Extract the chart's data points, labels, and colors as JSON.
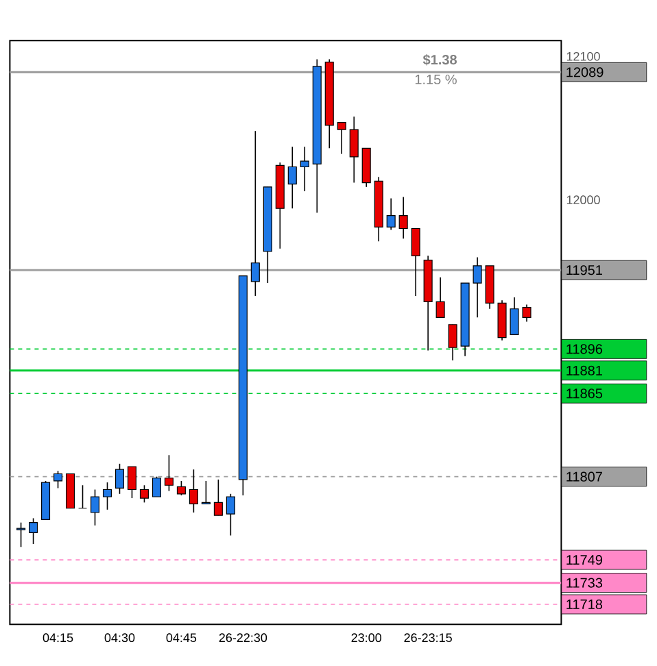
{
  "chart_data": {
    "type": "candlestick",
    "categories": [
      null,
      null,
      null,
      "04:15",
      null,
      null,
      null,
      null,
      "04:30",
      null,
      null,
      null,
      null,
      "04:45",
      null,
      null,
      null,
      null,
      "26-22:30",
      null,
      null,
      null,
      null,
      null,
      null,
      null,
      null,
      null,
      "23:00",
      null,
      null,
      null,
      null,
      "26-23:15",
      null,
      null,
      null,
      null,
      null,
      null,
      null,
      null
    ],
    "ohlc": [
      [
        11770,
        11775,
        11758,
        11771
      ],
      [
        11768,
        11778,
        11760,
        11775
      ],
      [
        11777,
        11804,
        11777,
        11803
      ],
      [
        11804,
        11811,
        11799,
        11809
      ],
      [
        11809,
        11809,
        11785,
        11785
      ],
      [
        11785,
        11801,
        11785,
        11785
      ],
      [
        11782,
        11798,
        11773,
        11793
      ],
      [
        11793,
        11803,
        11784,
        11798
      ],
      [
        11799,
        11816,
        11795,
        11812
      ],
      [
        11814,
        11814,
        11792,
        11798
      ],
      [
        11798,
        11801,
        11789,
        11792
      ],
      [
        11793,
        11807,
        11793,
        11806
      ],
      [
        11806,
        11822,
        11797,
        11801
      ],
      [
        11800,
        11804,
        11794,
        11795
      ],
      [
        11798,
        11812,
        11782,
        11788
      ],
      [
        11788,
        11804,
        11788,
        11789
      ],
      [
        11789,
        11805,
        11780,
        11780
      ],
      [
        11781,
        11795,
        11766,
        11793
      ],
      [
        11805,
        11947,
        11794,
        11947
      ],
      [
        11943,
        12048,
        11933,
        11956
      ],
      [
        11964,
        12009,
        11942,
        12009
      ],
      [
        12024,
        12026,
        11966,
        11994
      ],
      [
        12011,
        12037,
        11994,
        12023
      ],
      [
        12023,
        12037,
        12006,
        12027
      ],
      [
        12025,
        12098,
        11991,
        12093
      ],
      [
        12096,
        12098,
        12036,
        12052
      ],
      [
        12054,
        12054,
        12032,
        12049
      ],
      [
        12049,
        12058,
        12012,
        12030
      ],
      [
        12036,
        12036,
        12009,
        12012
      ],
      [
        12013,
        12016,
        11971,
        11981
      ],
      [
        11981,
        12001,
        11979,
        11989
      ],
      [
        11989,
        12002,
        11973,
        11980
      ],
      [
        11980,
        11980,
        11933,
        11961
      ],
      [
        11958,
        11961,
        11895,
        11929
      ],
      [
        11929,
        11946,
        11918,
        11918
      ],
      [
        11913,
        11913,
        11888,
        11897
      ],
      [
        11898,
        11942,
        11891,
        11942
      ],
      [
        11942,
        11960,
        11918,
        11954
      ],
      [
        11954,
        11954,
        11924,
        11928
      ],
      [
        11928,
        11930,
        11902,
        11904
      ],
      [
        11906,
        11932,
        11906,
        11924
      ],
      [
        11925,
        11927,
        11915,
        11918
      ]
    ],
    "colors": [
      "#1e78e6",
      "#1e78e6",
      "#1e78e6",
      "#1e78e6",
      "#e80000",
      "#000000",
      "#1e78e6",
      "#1e78e6",
      "#1e78e6",
      "#e80000",
      "#e80000",
      "#1e78e6",
      "#e80000",
      "#e80000",
      "#e80000",
      "#1e78e6",
      "#e80000",
      "#1e78e6",
      "#1e78e6",
      "#1e78e6",
      "#1e78e6",
      "#e80000",
      "#1e78e6",
      "#1e78e6",
      "#1e78e6",
      "#e80000",
      "#e80000",
      "#e80000",
      "#e80000",
      "#e80000",
      "#1e78e6",
      "#e80000",
      "#e80000",
      "#e80000",
      "#e80000",
      "#e80000",
      "#1e78e6",
      "#1e78e6",
      "#e80000",
      "#e80000",
      "#1e78e6",
      "#e80000"
    ],
    "ylim": [
      11704,
      12111
    ],
    "yticks": [
      12100,
      12000
    ],
    "ref_lines": [
      {
        "axis": "y",
        "value": 12089,
        "label": "12089",
        "color": "#a0a0a0",
        "line_style": "solid"
      },
      {
        "axis": "y",
        "value": 11951,
        "label": "11951",
        "color": "#a0a0a0",
        "line_style": "solid"
      },
      {
        "axis": "y",
        "value": 11896,
        "label": "11896",
        "color": "#00cc33",
        "line_style": "dashed"
      },
      {
        "axis": "y",
        "value": 11881,
        "label": "11881",
        "color": "#00cc33",
        "line_style": "solid"
      },
      {
        "axis": "y",
        "value": 11865,
        "label": "11865",
        "color": "#00cc33",
        "line_style": "dashed"
      },
      {
        "axis": "y",
        "value": 11807,
        "label": "11807",
        "color": "#a0a0a0",
        "line_style": "dashed"
      },
      {
        "axis": "y",
        "value": 11749,
        "label": "11749",
        "color": "#ff88c8",
        "line_style": "dashed"
      },
      {
        "axis": "y",
        "value": 11733,
        "label": "11733",
        "color": "#ff88c8",
        "line_style": "solid"
      },
      {
        "axis": "y",
        "value": 11718,
        "label": "11718",
        "color": "#ff88c8",
        "line_style": "dashed"
      }
    ],
    "annotations": [
      "$1.38",
      "1.15 %"
    ]
  }
}
